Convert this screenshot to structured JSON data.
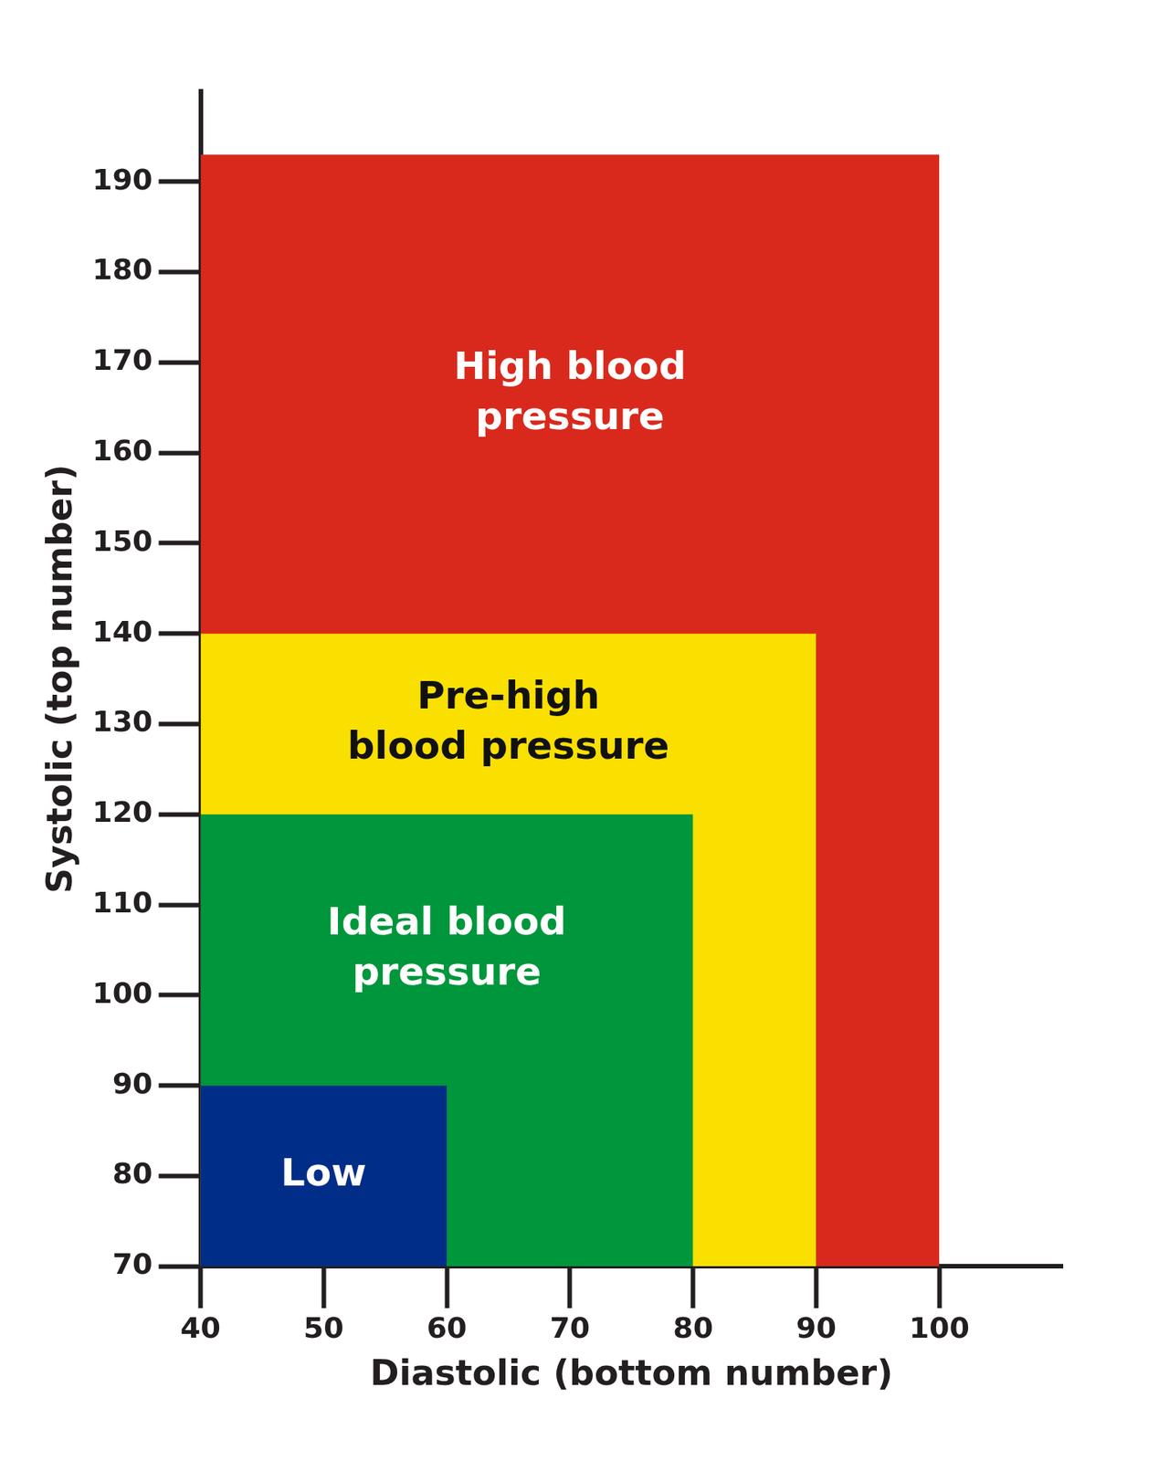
{
  "chart_data": {
    "type": "area",
    "x_label": "Diastolic (bottom number)",
    "y_label": "Systolic (top number)",
    "xlim": [
      40,
      110
    ],
    "ylim": [
      70,
      200
    ],
    "xticks": [
      40,
      50,
      60,
      70,
      80,
      90,
      100
    ],
    "yticks": [
      70,
      80,
      90,
      100,
      110,
      120,
      130,
      140,
      150,
      160,
      170,
      180,
      190
    ],
    "grid": false,
    "series": [
      {
        "label": [
          "High blood",
          "pressure"
        ],
        "color": "#d9291c",
        "x": [
          40,
          100
        ],
        "values": [
          193,
          193
        ]
      },
      {
        "label": [
          "Pre-high",
          "blood pressure"
        ],
        "color": "#f9e000",
        "x": [
          40,
          90
        ],
        "values": [
          140,
          140
        ]
      },
      {
        "label": [
          "Ideal blood",
          "pressure"
        ],
        "color": "#00963c",
        "x": [
          40,
          80
        ],
        "values": [
          120,
          120
        ]
      },
      {
        "label": [
          "Low"
        ],
        "color": "#002d87",
        "x": [
          40,
          60
        ],
        "values": [
          90,
          90
        ]
      }
    ]
  }
}
